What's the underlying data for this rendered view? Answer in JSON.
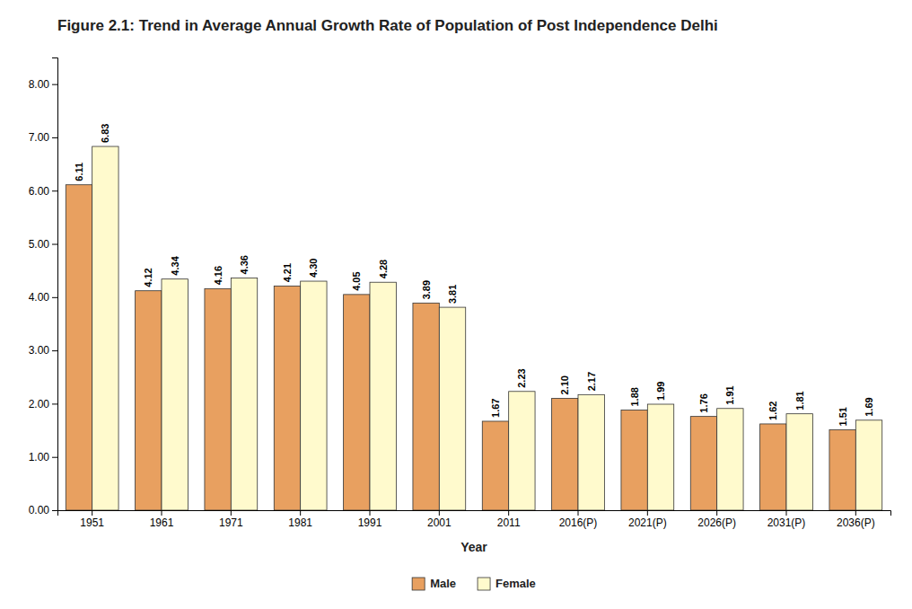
{
  "chart_data": {
    "type": "bar",
    "title": "Figure 2.1: Trend in Average Annual Growth Rate of Population of Post Independence Delhi",
    "xlabel": "Year",
    "categories": [
      "1951",
      "1961",
      "1971",
      "1981",
      "1991",
      "2001",
      "2011",
      "2016(P)",
      "2021(P)",
      "2026(P)",
      "2031(P)",
      "2036(P)"
    ],
    "series": [
      {
        "name": "Male",
        "color": "#E8A060",
        "values": [
          6.11,
          4.12,
          4.16,
          4.21,
          4.05,
          3.89,
          1.67,
          2.1,
          1.88,
          1.76,
          1.62,
          1.51
        ],
        "value_labels": [
          "6.11",
          "4.12",
          "4.16",
          "4.21",
          "4.05",
          "3.89",
          "1.67",
          "2.10",
          "1.88",
          "1.76",
          "1.62",
          "1.51"
        ]
      },
      {
        "name": "Female",
        "color": "#FFFACD",
        "values": [
          6.83,
          4.34,
          4.36,
          4.3,
          4.28,
          3.81,
          2.23,
          2.17,
          1.99,
          1.91,
          1.81,
          1.69
        ],
        "value_labels": [
          "6.83",
          "4.34",
          "4.36",
          "4.30",
          "4.28",
          "3.81",
          "2.23",
          "2.17",
          "1.99",
          "1.91",
          "1.81",
          "1.69"
        ]
      }
    ],
    "ylim": [
      0,
      8.5
    ],
    "yticks": [
      {
        "value": 0,
        "label": "0.00"
      },
      {
        "value": 1,
        "label": "1.00"
      },
      {
        "value": 2,
        "label": "2.00"
      },
      {
        "value": 3,
        "label": "3.00"
      },
      {
        "value": 4,
        "label": "4.00"
      },
      {
        "value": 5,
        "label": "5.00"
      },
      {
        "value": 6,
        "label": "6.00"
      },
      {
        "value": 7,
        "label": "7.00"
      },
      {
        "value": 8,
        "label": "8.00"
      }
    ],
    "grid": false,
    "data_labels": true,
    "legend": "bottom"
  }
}
